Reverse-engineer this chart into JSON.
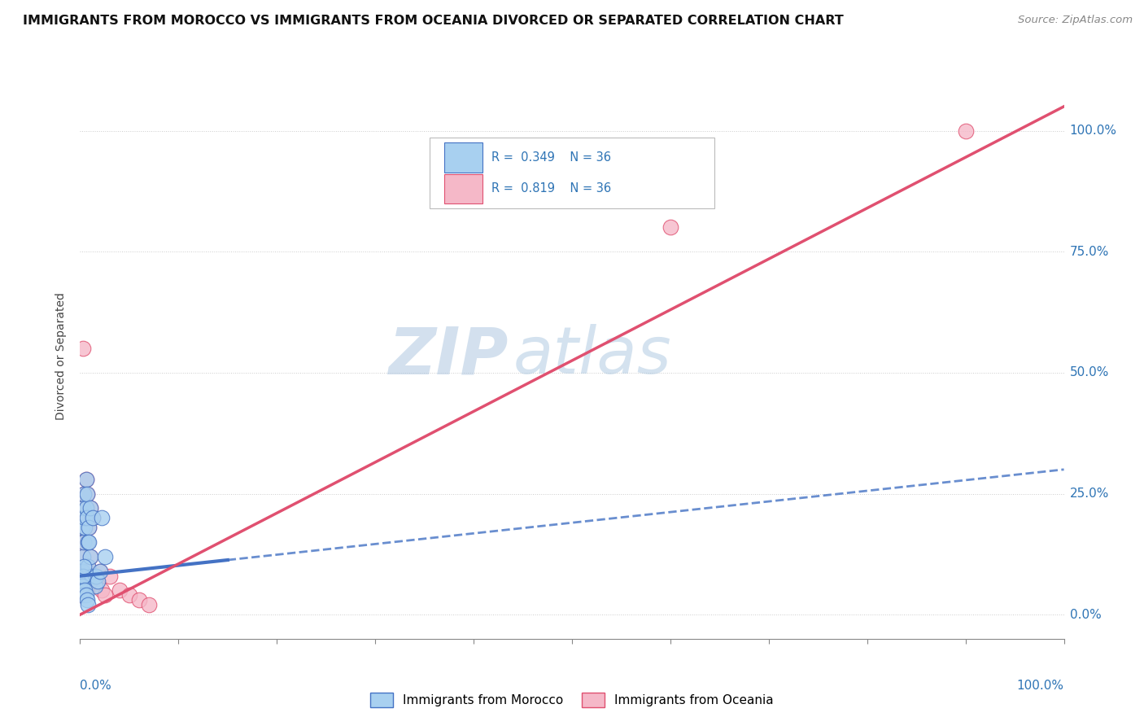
{
  "title": "IMMIGRANTS FROM MOROCCO VS IMMIGRANTS FROM OCEANIA DIVORCED OR SEPARATED CORRELATION CHART",
  "source": "Source: ZipAtlas.com",
  "ylabel": "Divorced or Separated",
  "watermark_zip": "ZIP",
  "watermark_atlas": "atlas",
  "legend_label_morocco": "Immigrants from Morocco",
  "legend_label_oceania": "Immigrants from Oceania",
  "color_morocco_fill": "#a8d0f0",
  "color_morocco_edge": "#4472c4",
  "color_oceania_fill": "#f5b8c8",
  "color_oceania_edge": "#e05070",
  "color_line_morocco": "#4472c4",
  "color_line_oceania": "#e05070",
  "color_text_blue": "#2e74b5",
  "color_grid": "#cccccc",
  "background_color": "#ffffff",
  "morocco_x": [
    0.001,
    0.002,
    0.002,
    0.003,
    0.003,
    0.004,
    0.004,
    0.005,
    0.005,
    0.006,
    0.006,
    0.007,
    0.007,
    0.008,
    0.008,
    0.009,
    0.01,
    0.01,
    0.012,
    0.013,
    0.015,
    0.016,
    0.018,
    0.02,
    0.022,
    0.025,
    0.001,
    0.002,
    0.003,
    0.003,
    0.004,
    0.005,
    0.006,
    0.007,
    0.008,
    0.009
  ],
  "morocco_y": [
    0.07,
    0.09,
    0.18,
    0.12,
    0.22,
    0.15,
    0.25,
    0.18,
    0.2,
    0.22,
    0.28,
    0.2,
    0.25,
    0.15,
    0.1,
    0.18,
    0.12,
    0.22,
    0.08,
    0.2,
    0.06,
    0.08,
    0.07,
    0.09,
    0.2,
    0.12,
    0.05,
    0.06,
    0.04,
    0.08,
    0.1,
    0.05,
    0.04,
    0.03,
    0.02,
    0.15
  ],
  "oceania_x": [
    0.001,
    0.002,
    0.002,
    0.003,
    0.003,
    0.004,
    0.004,
    0.005,
    0.005,
    0.006,
    0.006,
    0.007,
    0.007,
    0.008,
    0.008,
    0.009,
    0.01,
    0.01,
    0.012,
    0.013,
    0.015,
    0.016,
    0.018,
    0.02,
    0.022,
    0.025,
    0.001,
    0.002,
    0.003,
    0.03,
    0.04,
    0.05,
    0.06,
    0.07,
    0.6,
    0.9
  ],
  "oceania_y": [
    0.07,
    0.09,
    0.18,
    0.12,
    0.22,
    0.15,
    0.25,
    0.18,
    0.2,
    0.22,
    0.28,
    0.2,
    0.25,
    0.15,
    0.1,
    0.18,
    0.12,
    0.22,
    0.08,
    0.2,
    0.06,
    0.08,
    0.07,
    0.09,
    0.05,
    0.04,
    0.04,
    0.06,
    0.55,
    0.08,
    0.05,
    0.04,
    0.03,
    0.02,
    0.8,
    1.0
  ],
  "morocco_line_x0": 0.0,
  "morocco_line_x1": 1.0,
  "morocco_line_y0": 0.08,
  "morocco_line_y1": 0.3,
  "oceania_line_x0": 0.0,
  "oceania_line_x1": 1.0,
  "oceania_line_y0": 0.0,
  "oceania_line_y1": 1.05,
  "xlim": [
    0.0,
    1.0
  ],
  "ylim": [
    -0.05,
    1.12
  ],
  "ytick_values": [
    0.0,
    0.25,
    0.5,
    0.75,
    1.0
  ],
  "ytick_labels": [
    "0.0%",
    "25.0%",
    "50.0%",
    "75.0%",
    "100.0%"
  ]
}
